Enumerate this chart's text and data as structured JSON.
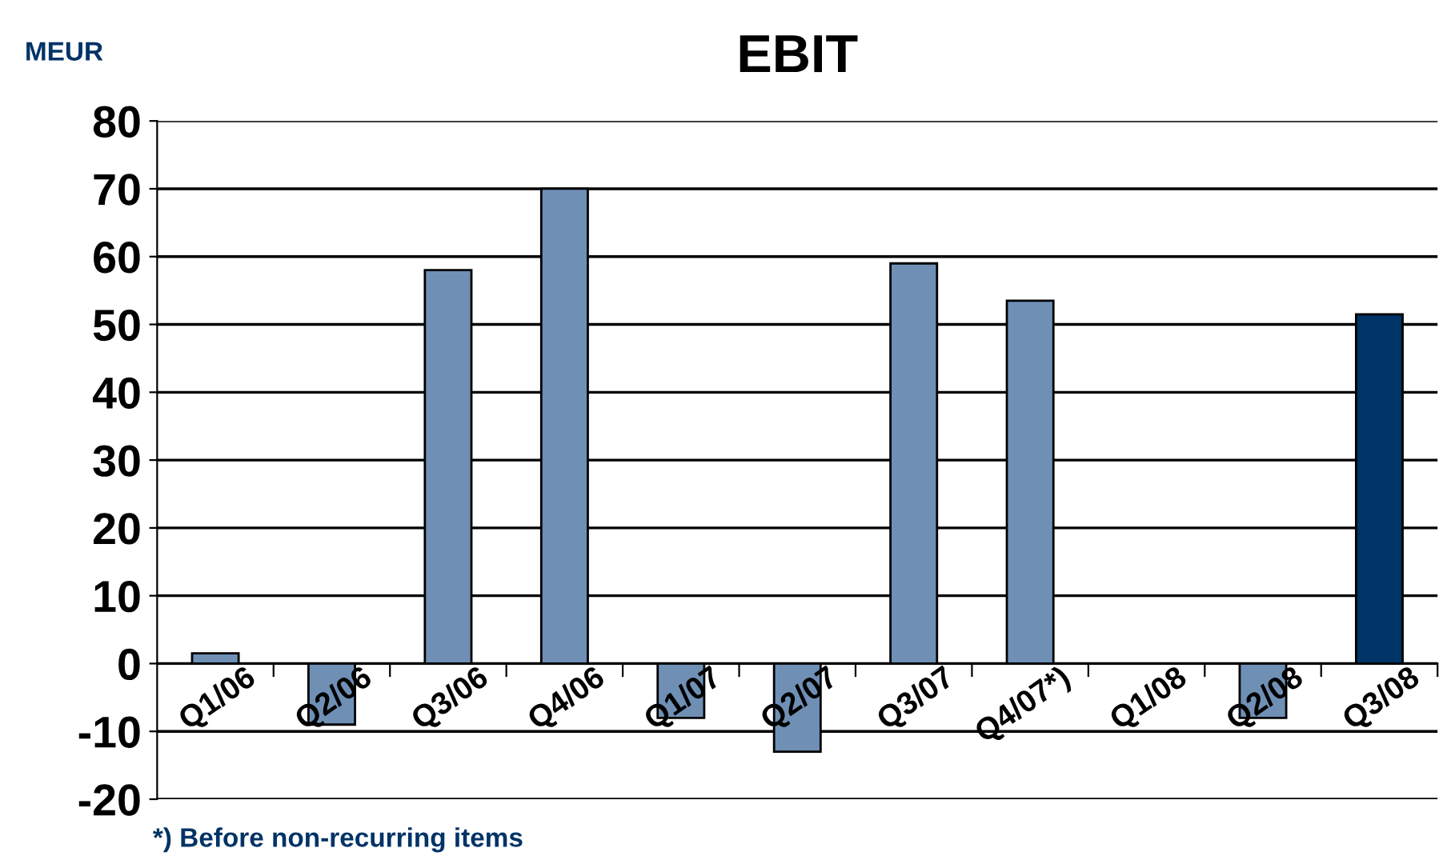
{
  "chart_data": {
    "type": "bar",
    "title": "EBIT",
    "ylabel": "MEUR",
    "categories": [
      "Q1/06",
      "Q2/06",
      "Q3/06",
      "Q4/06",
      "Q1/07",
      "Q2/07",
      "Q3/07",
      "Q4/07*)",
      "Q1/08",
      "Q2/08",
      "Q3/08"
    ],
    "values": [
      1.5,
      -9,
      58,
      70,
      -8,
      -13,
      59,
      53.5,
      null,
      -8,
      51.5
    ],
    "colors": [
      "#6f8fb5",
      "#6f8fb5",
      "#6f8fb5",
      "#6f8fb5",
      "#6f8fb5",
      "#6f8fb5",
      "#6f8fb5",
      "#6f8fb5",
      "#6f8fb5",
      "#6f8fb5",
      "#003366"
    ],
    "ylim": [
      -20,
      80
    ],
    "yticks": [
      -20,
      -10,
      0,
      10,
      20,
      30,
      40,
      50,
      60,
      70,
      80
    ],
    "grid": "y",
    "legend": false,
    "annotations": [
      "*) Before non-recurring items"
    ]
  }
}
